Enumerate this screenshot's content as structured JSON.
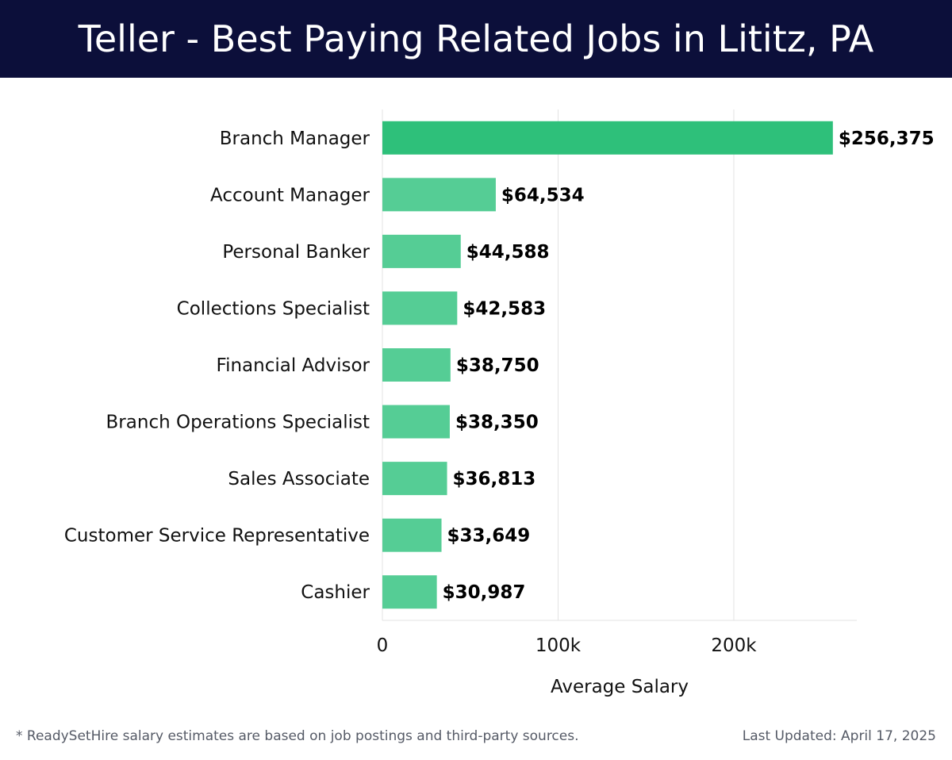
{
  "header": {
    "title": "Teller - Best Paying Related Jobs in Lititz, PA"
  },
  "colors": {
    "header_bg": "#0c0f3a",
    "top_bar": "#2ec07a",
    "bar": "#55cd95",
    "grid": "#e3e3e3"
  },
  "chart_data": {
    "type": "bar",
    "orientation": "horizontal",
    "title": "Teller - Best Paying Related Jobs in Lititz, PA",
    "xlabel": "Average Salary",
    "ylabel": "",
    "xlim": [
      0,
      270000
    ],
    "xticks": [
      0,
      100000,
      200000
    ],
    "xtick_labels": [
      "0",
      "100k",
      "200k"
    ],
    "grid": true,
    "categories": [
      "Branch Manager",
      "Account Manager",
      "Personal Banker",
      "Collections Specialist",
      "Financial Advisor",
      "Branch Operations Specialist",
      "Sales Associate",
      "Customer Service Representative",
      "Cashier"
    ],
    "values": [
      256375,
      64534,
      44588,
      42583,
      38750,
      38350,
      36813,
      33649,
      30987
    ],
    "data_labels": [
      "$256,375",
      "$64,534",
      "$44,588",
      "$42,583",
      "$38,750",
      "$38,350",
      "$36,813",
      "$33,649",
      "$30,987"
    ]
  },
  "footer": {
    "note": "* ReadySetHire salary estimates are based on job postings and third-party sources.",
    "updated": "Last Updated: April 17, 2025"
  }
}
